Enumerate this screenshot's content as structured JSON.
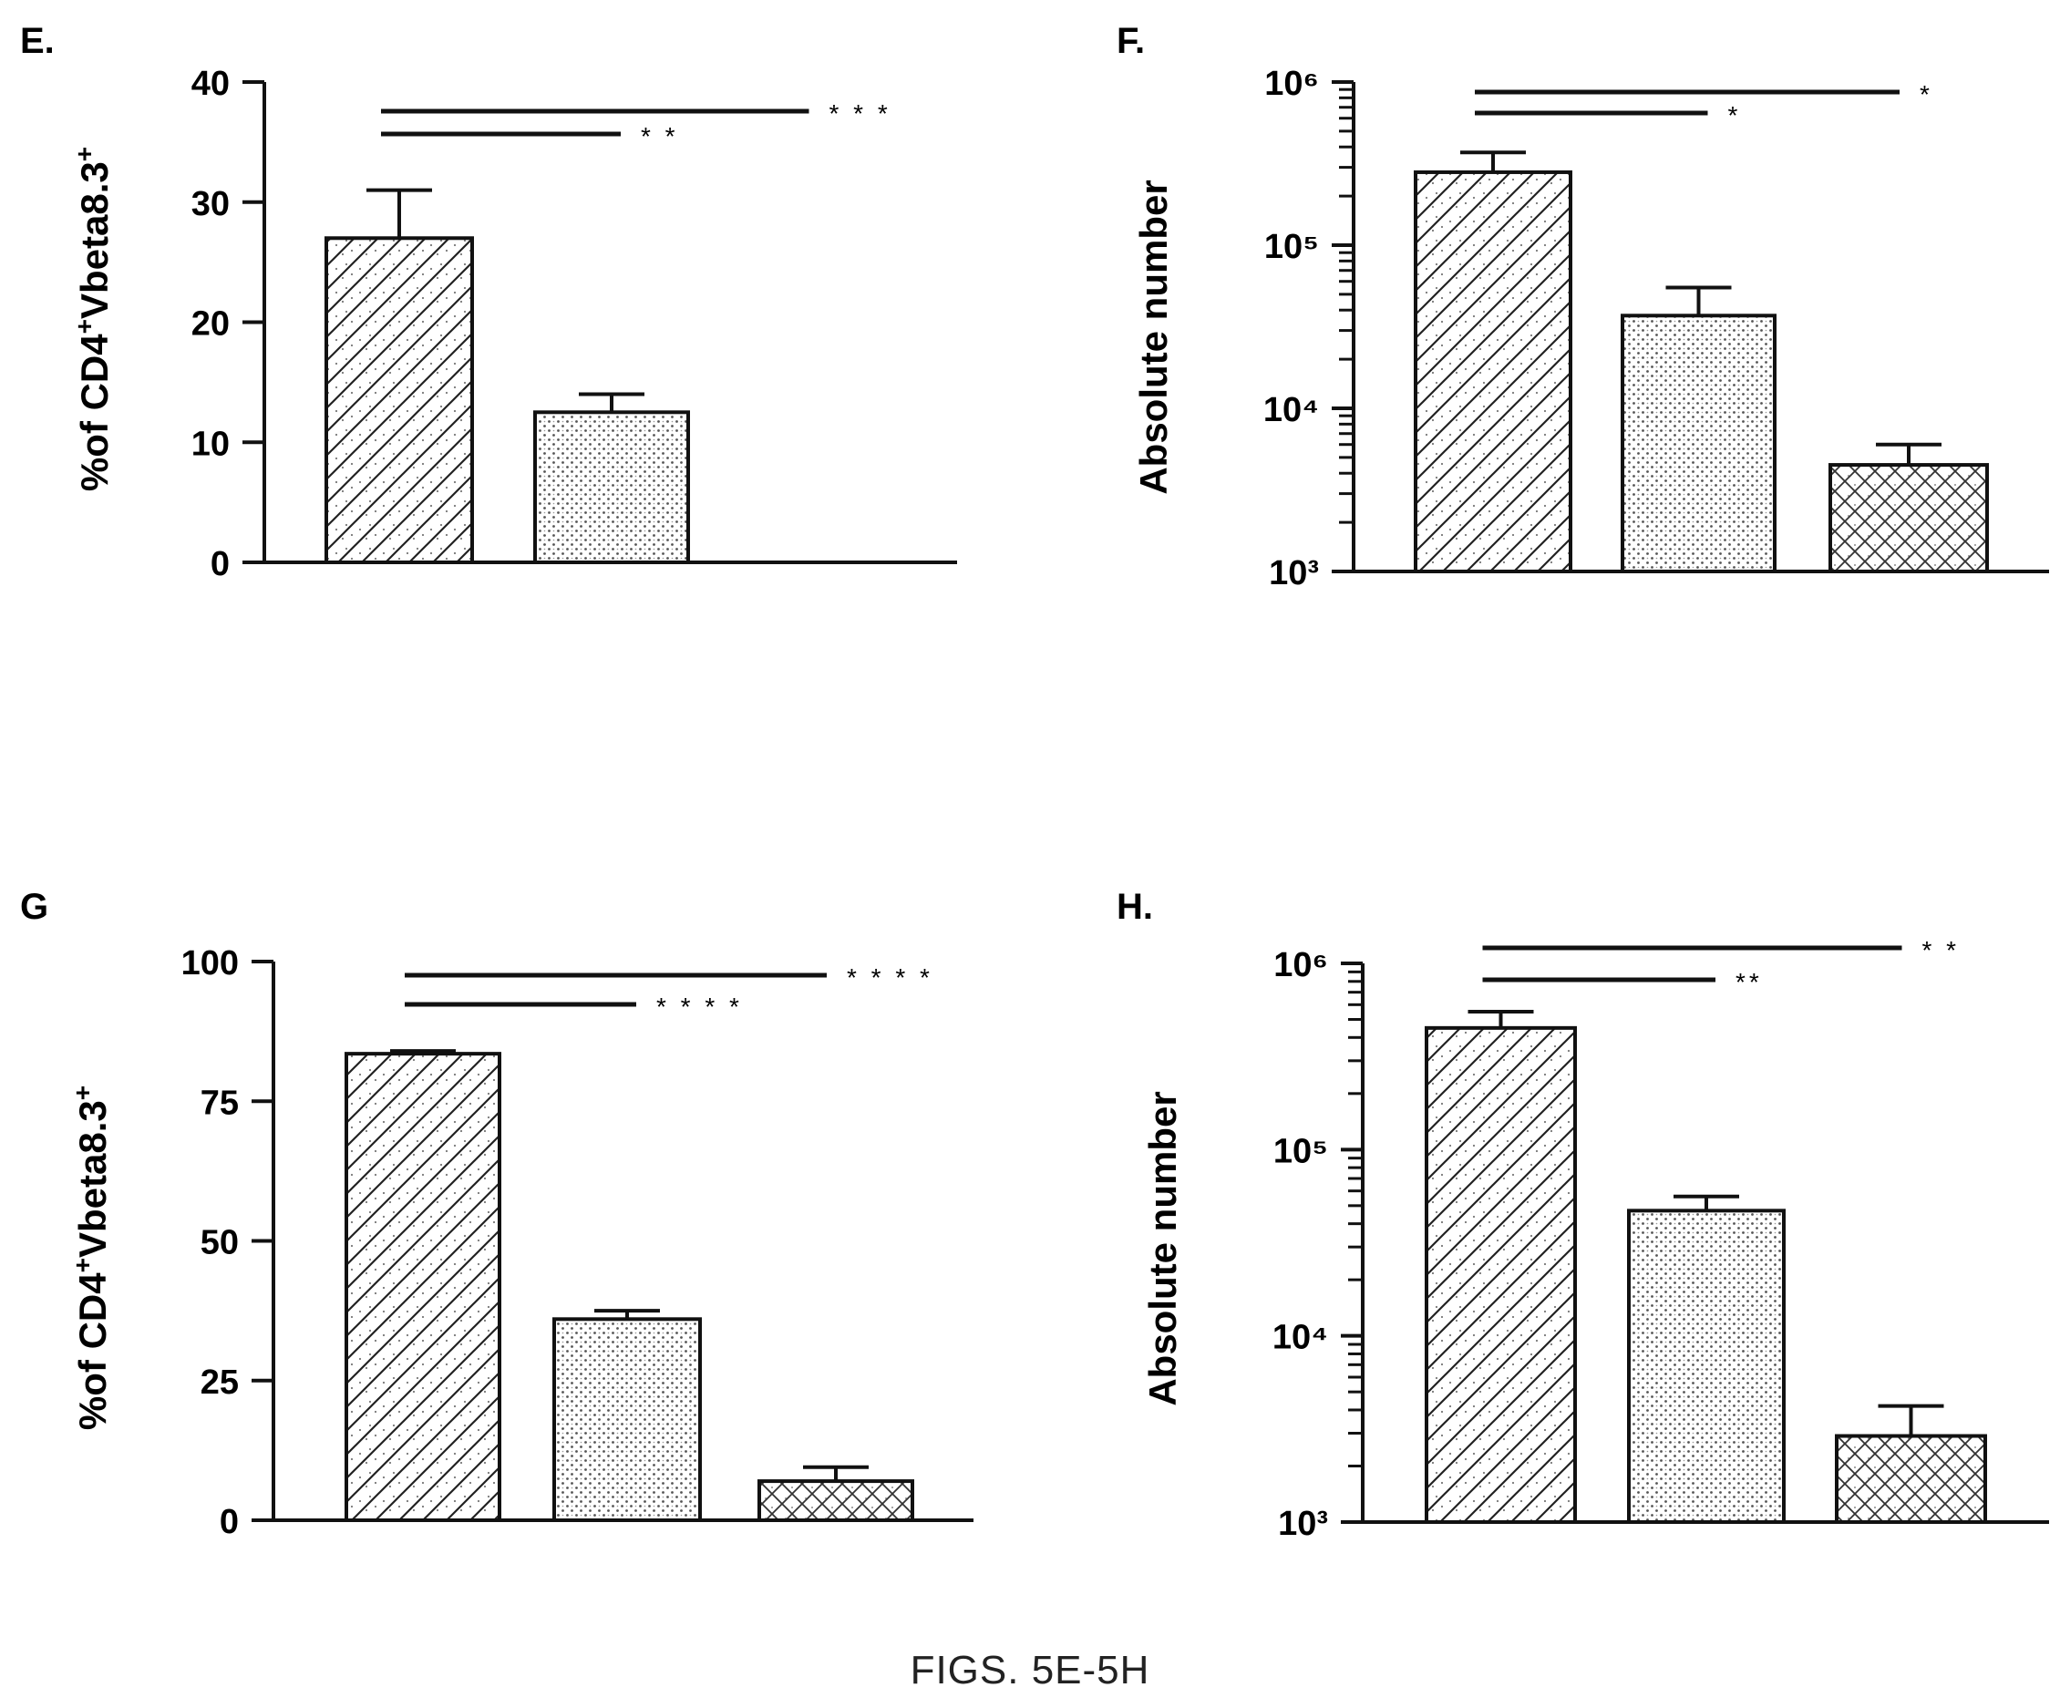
{
  "figure_caption": "FIGS. 5E-5H",
  "chart_data": [
    {
      "panel": "E.",
      "type": "bar",
      "scale": "linear",
      "ylabel_main": "%of CD4",
      "ylabel_sup1": "+",
      "ylabel_mid": "Vbeta8.3",
      "ylabel_sup2": "+",
      "ylim": [
        0,
        40
      ],
      "yticks": [
        0,
        10,
        20,
        30,
        40
      ],
      "ytick_labels": [
        "0",
        "10",
        "20",
        "30",
        "40"
      ],
      "bars": [
        {
          "value": 27,
          "error": 4,
          "pattern": "hatch"
        },
        {
          "value": 12.5,
          "error": 1.5,
          "pattern": "dots"
        }
      ],
      "slots": 3,
      "significance": [
        {
          "from": 0,
          "to": 3,
          "label": "* * *"
        },
        {
          "from": 0,
          "to": 1,
          "label": "* *"
        }
      ]
    },
    {
      "panel": "F.",
      "type": "bar",
      "scale": "log",
      "ylabel_main": "Absolute number",
      "ylim": [
        1000,
        1000000
      ],
      "yticks": [
        1000,
        10000,
        100000,
        1000000
      ],
      "ytick_labels": [
        "10³",
        "10⁴",
        "10⁵",
        "10⁶"
      ],
      "bars": [
        {
          "value": 280000,
          "error": 90000,
          "pattern": "hatch"
        },
        {
          "value": 37000,
          "error": 18000,
          "pattern": "dots"
        },
        {
          "value": 4500,
          "error": 1500,
          "pattern": "cross"
        }
      ],
      "slots": 3,
      "significance": [
        {
          "from": 0,
          "to": 3,
          "label": "*"
        },
        {
          "from": 0,
          "to": 1,
          "label": "*"
        }
      ]
    },
    {
      "panel": "G",
      "type": "bar",
      "scale": "linear",
      "ylabel_main": "%of CD4",
      "ylabel_sup1": "+",
      "ylabel_mid": "Vbeta8.3",
      "ylabel_sup2": "+",
      "ylim": [
        0,
        100
      ],
      "yticks": [
        0,
        25,
        50,
        75,
        100
      ],
      "ytick_labels": [
        "0",
        "25",
        "50",
        "75",
        "100"
      ],
      "bars": [
        {
          "value": 83.5,
          "error": 0.5,
          "pattern": "hatch"
        },
        {
          "value": 36,
          "error": 1.5,
          "pattern": "dots"
        },
        {
          "value": 7,
          "error": 2.5,
          "pattern": "cross"
        }
      ],
      "slots": 3,
      "significance": [
        {
          "from": 0,
          "to": 3,
          "label": "* * * *"
        },
        {
          "from": 0,
          "to": 1,
          "label": "* * * *"
        }
      ]
    },
    {
      "panel": "H.",
      "type": "bar",
      "scale": "log",
      "ylabel_main": "Absolute number",
      "ylim": [
        1000,
        1000000
      ],
      "yticks": [
        1000,
        10000,
        100000,
        1000000
      ],
      "ytick_labels": [
        "10³",
        "10⁴",
        "10⁵",
        "10⁶"
      ],
      "bars": [
        {
          "value": 450000,
          "error": 100000,
          "pattern": "hatch"
        },
        {
          "value": 47000,
          "error": 9000,
          "pattern": "dots"
        },
        {
          "value": 2900,
          "error": 1300,
          "pattern": "cross"
        }
      ],
      "slots": 3,
      "significance": [
        {
          "from": 0,
          "to": 3,
          "label": "* *"
        },
        {
          "from": 0,
          "to": 1,
          "label": "**"
        }
      ]
    }
  ]
}
